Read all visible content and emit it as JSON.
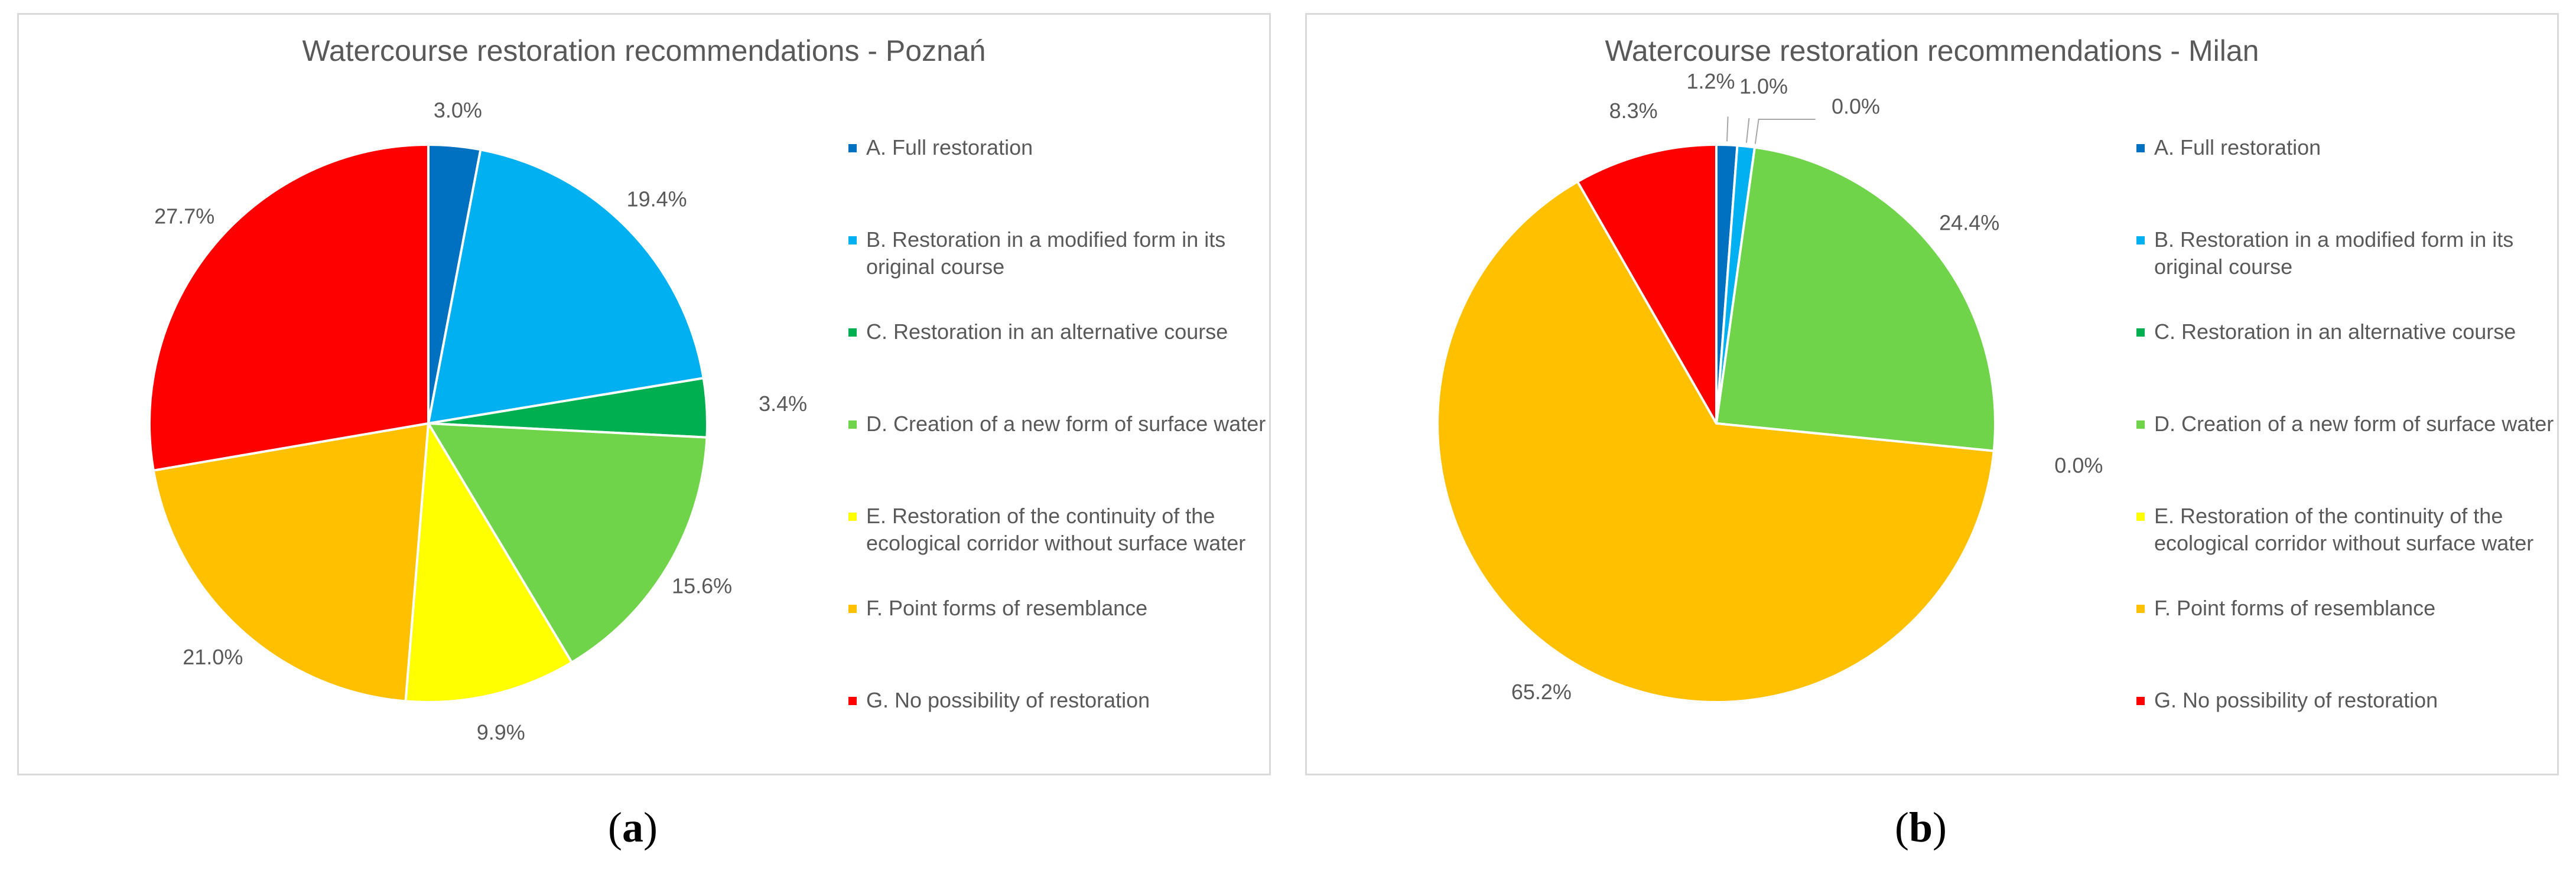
{
  "chart_data": [
    {
      "type": "pie",
      "title": "Watercourse restoration recommendations - Poznań",
      "categories": [
        "A. Full restoration",
        "B. Restoration in a modified form in its original course",
        "C. Restoration in an alternative course",
        "D. Creation of a new form of surface water",
        "E. Restoration of the continuity of the ecological corridor without surface water",
        "F. Point forms of resemblance",
        "G. No possibility of restoration"
      ],
      "values": [
        3.0,
        19.4,
        3.4,
        15.6,
        9.9,
        21.0,
        27.7
      ],
      "labels": [
        "3.0%",
        "19.4%",
        "3.4%",
        "15.6%",
        "9.9%",
        "21.0%",
        "27.7%"
      ],
      "colors": [
        "#0070C0",
        "#00B0F0",
        "#00B050",
        "#70D44B",
        "#FFFF00",
        "#FFC000",
        "#FF0000"
      ],
      "legend_position": "right",
      "caption": {
        "open": "(",
        "letter": "a",
        "close": ")"
      }
    },
    {
      "type": "pie",
      "title": "Watercourse restoration recommendations - Milan",
      "categories": [
        "A. Full restoration",
        "B. Restoration in a modified form in its original course",
        "C. Restoration in an alternative course",
        "D. Creation of a new form of surface water",
        "E. Restoration of the continuity of the ecological corridor without surface water",
        "F. Point forms of resemblance",
        "G. No possibility of restoration"
      ],
      "values": [
        1.2,
        1.0,
        0.0,
        24.4,
        0.0,
        65.2,
        8.3
      ],
      "labels": [
        "1.2%",
        "1.0%",
        "0.0%",
        "24.4%",
        "0.0%",
        "65.2%",
        "8.3%"
      ],
      "colors": [
        "#0070C0",
        "#00B0F0",
        "#00B050",
        "#70D44B",
        "#FFFF00",
        "#FFC000",
        "#FF0000"
      ],
      "legend_position": "right",
      "caption": {
        "open": "(",
        "letter": "b",
        "close": ")"
      }
    }
  ]
}
